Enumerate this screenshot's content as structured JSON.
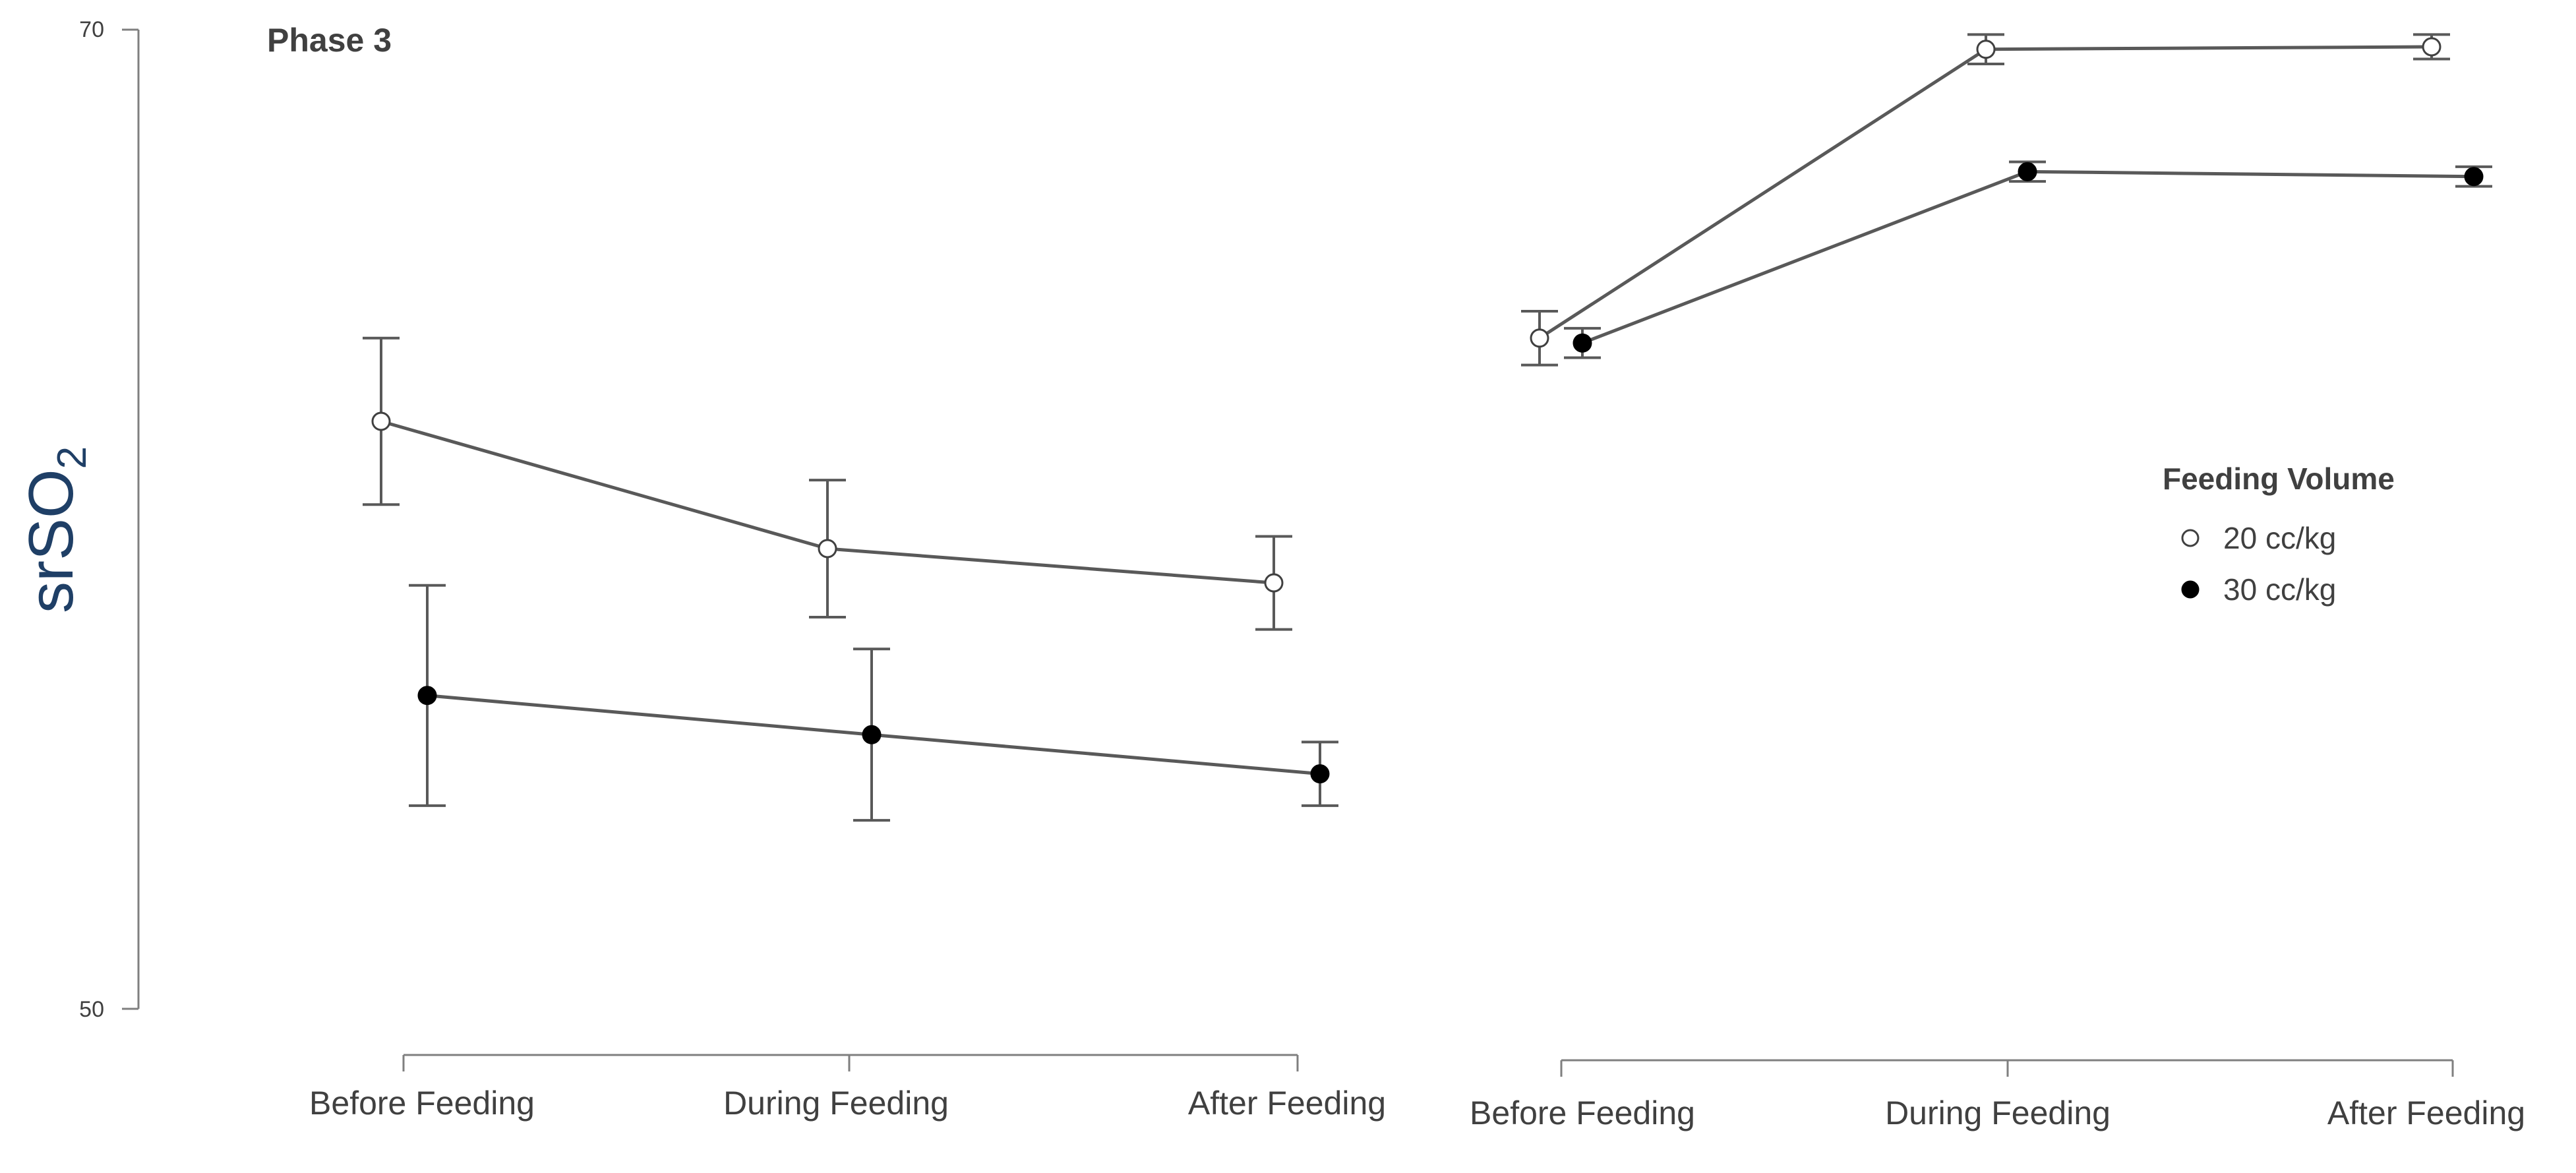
{
  "chart_data": {
    "type": "line",
    "title": "Phase 3",
    "ylabel_main": "srSO",
    "ylabel_sub": "2",
    "ylim": [
      50,
      70
    ],
    "yticks": [
      "70",
      "50"
    ],
    "categories": [
      "Before Feeding",
      "During Feeding",
      "After Feeding"
    ],
    "legend_title": "Feeding Volume",
    "panels": [
      {
        "name": "left",
        "series": [
          {
            "name": "20 cc/kg",
            "values": [
              62.0,
              59.4,
              58.7
            ],
            "err": [
              1.7,
              1.4,
              0.95
            ]
          },
          {
            "name": "30 cc/kg",
            "values": [
              56.4,
              55.6,
              54.8
            ],
            "err": [
              2.25,
              1.75,
              0.65
            ]
          }
        ]
      },
      {
        "name": "right",
        "series": [
          {
            "name": "20 cc/kg",
            "values": [
              63.7,
              69.6,
              69.65
            ],
            "err": [
              0.55,
              0.3,
              0.25
            ]
          },
          {
            "name": "30 cc/kg",
            "values": [
              63.6,
              67.1,
              67.0
            ],
            "err": [
              0.3,
              0.2,
              0.2
            ]
          }
        ]
      }
    ]
  }
}
